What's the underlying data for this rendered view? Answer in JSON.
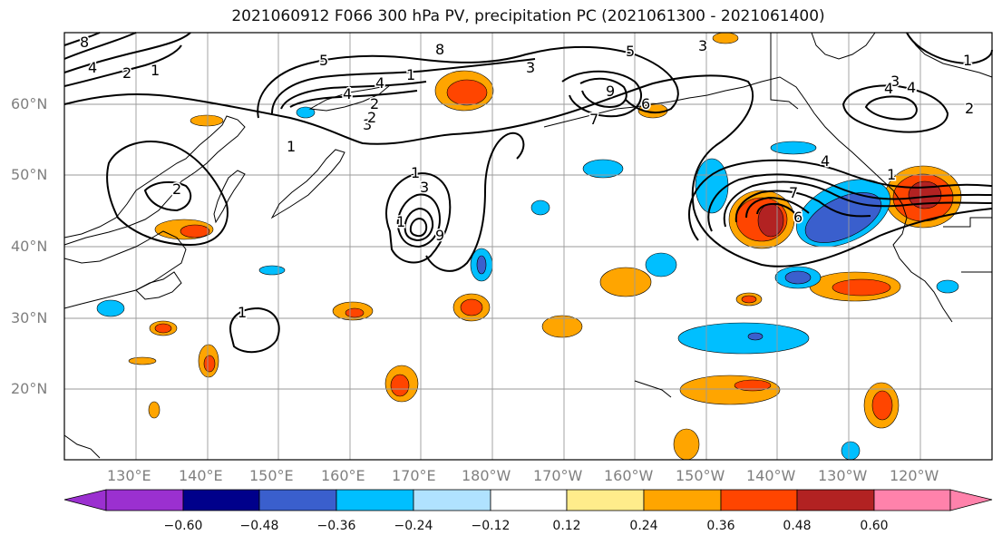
{
  "title": "2021060912 F066 300 hPa PV, precipitation PC (2021061300 - 2021061400)",
  "map": {
    "lon_labels": [
      "130°E",
      "140°E",
      "150°E",
      "160°E",
      "170°E",
      "180°W",
      "170°W",
      "160°W",
      "150°W",
      "140°W",
      "130°W",
      "120°W"
    ],
    "lat_labels": [
      "60°N",
      "50°N",
      "40°N",
      "30°N",
      "20°N"
    ],
    "contour_labels": [
      "8",
      "2",
      "1",
      "4",
      "8",
      "5",
      "4",
      "1",
      "2",
      "3",
      "4",
      "5",
      "6",
      "9",
      "7",
      "1",
      "3",
      "3",
      "4",
      "1",
      "2",
      "1",
      "1",
      "2",
      "3",
      "9",
      "4",
      "6",
      "7",
      "1",
      "4",
      "3",
      "2",
      "1"
    ]
  },
  "colorbar": {
    "ticks": [
      "−0.60",
      "−0.48",
      "−0.36",
      "−0.24",
      "−0.12",
      "0.12",
      "0.24",
      "0.36",
      "0.48",
      "0.60"
    ],
    "colors": [
      "#9b30d0",
      "#00008b",
      "#3a5fcd",
      "#00bfff",
      "#b0e2ff",
      "#ffffff",
      "#ffec8b",
      "#ffa500",
      "#ff4500",
      "#b22222",
      "#ff82ab"
    ]
  }
}
